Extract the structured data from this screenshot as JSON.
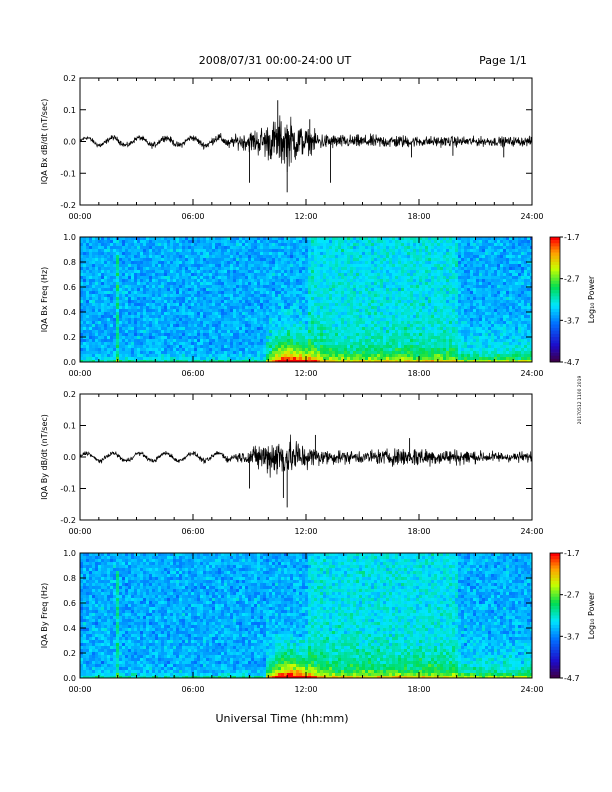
{
  "header": {
    "title": "2008/07/31  00:00-24:00 UT",
    "page": "Page 1/1"
  },
  "side_note": "20170512 1100 2019",
  "xlabel": "Universal Time (hh:mm)",
  "x_ticks": [
    "00:00",
    "06:00",
    "12:00",
    "18:00",
    "24:00"
  ],
  "chart_data": [
    {
      "type": "line",
      "ylabel": "IQA Bx dB/dt (nT/sec)",
      "xlim": [
        0,
        24
      ],
      "ylim": [
        -0.2,
        0.2
      ],
      "y_ticks": [
        "0.2",
        "0.1",
        "0.0",
        "-0.1",
        "-0.2"
      ],
      "x_ticks": [
        "00:00",
        "06:00",
        "12:00",
        "18:00",
        "24:00"
      ],
      "series": [
        {
          "x": [
            0,
            1,
            2,
            3,
            4,
            5,
            6,
            7,
            8,
            9,
            9.5,
            10,
            10.5,
            11,
            11.5,
            12,
            13,
            14,
            15,
            16,
            17,
            18,
            19,
            20,
            21,
            22,
            23,
            24
          ],
          "amplitude": [
            0.008,
            0.01,
            0.01,
            0.01,
            0.012,
            0.012,
            0.012,
            0.015,
            0.02,
            0.04,
            0.055,
            0.07,
            0.09,
            0.1,
            0.075,
            0.05,
            0.03,
            0.025,
            0.025,
            0.025,
            0.025,
            0.02,
            0.02,
            0.02,
            0.018,
            0.018,
            0.018,
            0.018
          ],
          "spikes": [
            [
              9.0,
              -0.13
            ],
            [
              10.5,
              0.13
            ],
            [
              11.0,
              -0.16
            ],
            [
              12.2,
              0.07
            ],
            [
              13.3,
              -0.13
            ],
            [
              17.6,
              -0.05
            ],
            [
              19.8,
              -0.045
            ],
            [
              22.5,
              -0.05
            ]
          ]
        }
      ]
    },
    {
      "type": "heatmap",
      "ylabel": "IQA Bx Freq (Hz)",
      "xlim": [
        0,
        24
      ],
      "ylim": [
        0,
        1.0
      ],
      "y_ticks": [
        "1.0",
        "0.8",
        "0.6",
        "0.4",
        "0.2",
        "0.0"
      ],
      "x_ticks": [
        "00:00",
        "06:00",
        "12:00",
        "18:00",
        "24:00"
      ],
      "colorbar": {
        "label": "Log₁₀ Power",
        "min": -4.7,
        "max": -1.7,
        "ticks": [
          "-1.7",
          "-2.7",
          "-3.7",
          "-4.7"
        ]
      },
      "enhancement": {
        "start": 9.8,
        "peak": 11.0,
        "end": 24,
        "max_freq": 0.3
      }
    },
    {
      "type": "line",
      "ylabel": "IQA By dB/dt (nT/sec)",
      "xlim": [
        0,
        24
      ],
      "ylim": [
        -0.2,
        0.2
      ],
      "y_ticks": [
        "0.2",
        "0.1",
        "0.0",
        "-0.1",
        "-0.2"
      ],
      "x_ticks": [
        "00:00",
        "06:00",
        "12:00",
        "18:00",
        "24:00"
      ],
      "series": [
        {
          "x": [
            0,
            1,
            2,
            3,
            4,
            5,
            6,
            7,
            8,
            9,
            9.5,
            10,
            10.5,
            11,
            11.5,
            12,
            13,
            14,
            15,
            16,
            17,
            18,
            19,
            20,
            21,
            22,
            23,
            24
          ],
          "amplitude": [
            0.008,
            0.008,
            0.008,
            0.008,
            0.008,
            0.008,
            0.008,
            0.01,
            0.012,
            0.03,
            0.05,
            0.07,
            0.08,
            0.08,
            0.07,
            0.045,
            0.03,
            0.025,
            0.025,
            0.03,
            0.035,
            0.04,
            0.03,
            0.03,
            0.025,
            0.02,
            0.02,
            0.02
          ],
          "spikes": [
            [
              9.0,
              -0.1
            ],
            [
              10.8,
              -0.13
            ],
            [
              11.0,
              -0.16
            ],
            [
              12.5,
              0.07
            ],
            [
              17.5,
              0.06
            ]
          ]
        }
      ]
    },
    {
      "type": "heatmap",
      "ylabel": "IQA By Freq (Hz)",
      "xlim": [
        0,
        24
      ],
      "ylim": [
        0,
        1.0
      ],
      "y_ticks": [
        "1.0",
        "0.8",
        "0.6",
        "0.4",
        "0.2",
        "0.0"
      ],
      "x_ticks": [
        "00:00",
        "06:00",
        "12:00",
        "18:00",
        "24:00"
      ],
      "colorbar": {
        "label": "Log₁₀ Power",
        "min": -4.7,
        "max": -1.7,
        "ticks": [
          "-1.7",
          "-2.7",
          "-3.7",
          "-4.7"
        ]
      },
      "enhancement": {
        "start": 9.8,
        "peak": 11.0,
        "end": 24,
        "max_freq": 0.3
      }
    }
  ]
}
